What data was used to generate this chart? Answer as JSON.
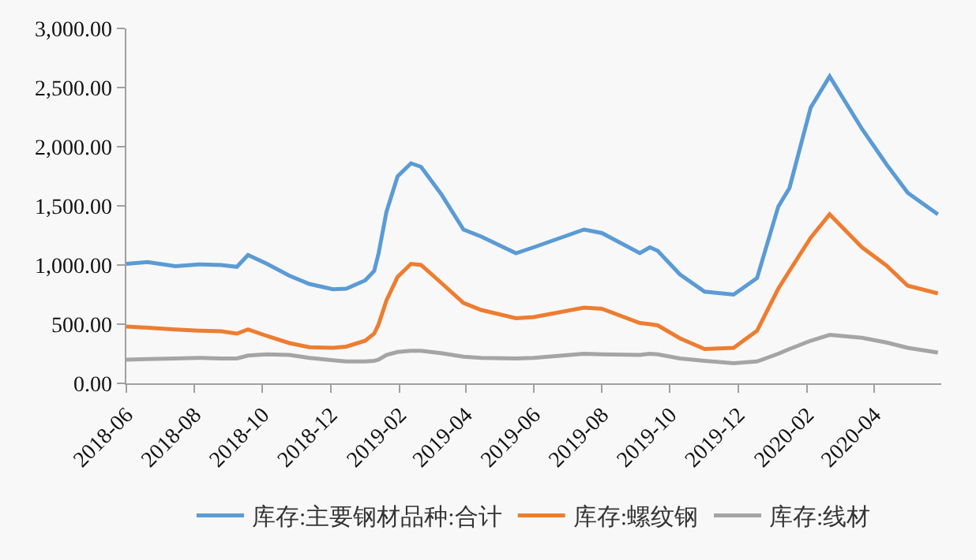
{
  "chart_data": {
    "type": "line",
    "x": [
      "2018-06-01",
      "2018-06-20",
      "2018-07-15",
      "2018-08-05",
      "2018-08-25",
      "2018-09-08",
      "2018-09-18",
      "2018-10-05",
      "2018-10-25",
      "2018-11-12",
      "2018-12-03",
      "2018-12-15",
      "2019-01-01",
      "2019-01-09",
      "2019-01-13",
      "2019-01-20",
      "2019-01-30",
      "2019-02-11",
      "2019-02-20",
      "2019-03-10",
      "2019-03-30",
      "2019-04-15",
      "2019-05-16",
      "2019-06-01",
      "2019-07-16",
      "2019-08-01",
      "2019-09-04",
      "2019-09-13",
      "2019-09-20",
      "2019-10-10",
      "2019-11-01",
      "2019-11-27",
      "2019-12-18",
      "2020-01-06",
      "2020-01-16",
      "2020-02-04",
      "2020-02-21",
      "2020-03-21",
      "2020-04-12",
      "2020-05-01",
      "2020-05-28"
    ],
    "series": [
      {
        "name": "库存:主要钢材品种:合计",
        "color": "#5b9bd5",
        "values": [
          1010,
          1025,
          990,
          1005,
          1000,
          985,
          1085,
          1010,
          910,
          840,
          795,
          800,
          870,
          950,
          1100,
          1450,
          1750,
          1860,
          1830,
          1600,
          1300,
          1240,
          1100,
          1150,
          1300,
          1270,
          1100,
          1150,
          1120,
          920,
          775,
          750,
          890,
          1494,
          1650,
          2330,
          2594,
          2150,
          1850,
          1610,
          1428
        ]
      },
      {
        "name": "库存:螺纹钢",
        "color": "#ed7d31",
        "values": [
          480,
          470,
          455,
          445,
          440,
          420,
          455,
          400,
          340,
          305,
          300,
          310,
          360,
          420,
          500,
          700,
          900,
          1010,
          1000,
          850,
          680,
          620,
          550,
          560,
          640,
          630,
          510,
          500,
          490,
          380,
          290,
          300,
          445,
          800,
          950,
          1230,
          1428,
          1150,
          995,
          825,
          760
        ]
      },
      {
        "name": "库存:线材",
        "color": "#a5a5a5",
        "values": [
          200,
          205,
          210,
          215,
          210,
          210,
          235,
          245,
          240,
          215,
          195,
          185,
          185,
          190,
          200,
          240,
          265,
          275,
          275,
          255,
          225,
          215,
          210,
          215,
          250,
          245,
          240,
          250,
          245,
          210,
          190,
          170,
          185,
          250,
          290,
          360,
          410,
          385,
          345,
          300,
          260
        ]
      }
    ],
    "xlim": [
      "2018-06-01",
      "2020-05-31"
    ],
    "xticks": [
      "2018-06",
      "2018-08",
      "2018-10",
      "2018-12",
      "2019-02",
      "2019-04",
      "2019-06",
      "2019-08",
      "2019-10",
      "2019-12",
      "2020-02",
      "2020-04"
    ],
    "ylim": [
      0,
      3000
    ],
    "yticks": [
      {
        "value": 0,
        "label": "0.00"
      },
      {
        "value": 500,
        "label": "500.00"
      },
      {
        "value": 1000,
        "label": "1,000.00"
      },
      {
        "value": 1500,
        "label": "1,500.00"
      },
      {
        "value": 2000,
        "label": "2,000.00"
      },
      {
        "value": 2500,
        "label": "2,500.00"
      },
      {
        "value": 3000,
        "label": "3,000.00"
      }
    ],
    "grid": false,
    "legend": "bottom",
    "marker": "none",
    "line_style": "solid"
  }
}
